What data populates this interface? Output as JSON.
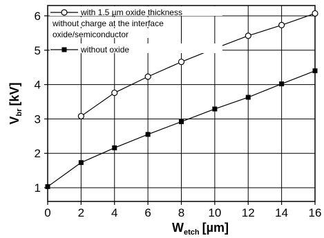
{
  "chart_data": {
    "type": "line",
    "xlabel": {
      "main": "W",
      "sub": "etch",
      "unit": "[µm]"
    },
    "ylabel": {
      "main": "V",
      "sub": "br",
      "unit": "[kV]"
    },
    "xlim": [
      0,
      16
    ],
    "ylim": [
      0.6,
      6.3
    ],
    "xticks": [
      0,
      2,
      4,
      6,
      8,
      10,
      12,
      14,
      16
    ],
    "yticks": [
      1,
      2,
      3,
      4,
      5,
      6
    ],
    "grid": true,
    "legend_position": "top-left",
    "series": [
      {
        "name": "with 1.5 µm oxide thickness",
        "name_extra": [
          "without charge at the interface",
          "oxide/semiconductor"
        ],
        "marker": "open-circle",
        "x": [
          2,
          4,
          6,
          8,
          10,
          12,
          14,
          16
        ],
        "y": [
          3.08,
          3.76,
          4.23,
          4.66,
          5.05,
          5.42,
          5.73,
          6.07
        ]
      },
      {
        "name": "without oxide",
        "marker": "filled-square",
        "x": [
          0,
          2,
          4,
          6,
          8,
          10,
          12,
          14,
          16
        ],
        "y": [
          1.03,
          1.73,
          2.16,
          2.55,
          2.92,
          3.29,
          3.63,
          4.02,
          4.4
        ]
      }
    ]
  }
}
